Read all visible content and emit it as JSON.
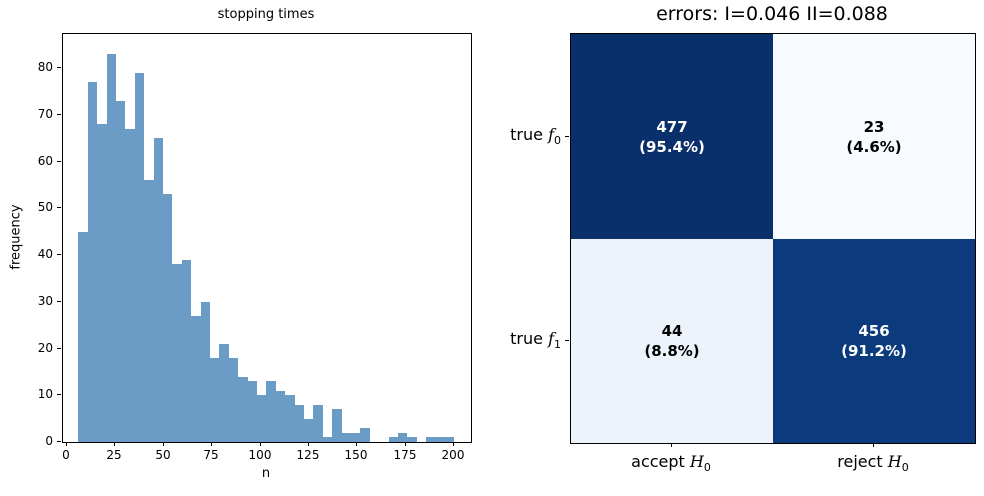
{
  "figure": {
    "background": "#ffffff"
  },
  "histogram": {
    "title": "stopping times",
    "xlabel": "n",
    "ylabel": "frequency",
    "bar_color": "#6a9cc6",
    "xticks": [
      0,
      25,
      50,
      75,
      100,
      125,
      150,
      175,
      200
    ],
    "yticks": [
      0,
      10,
      20,
      30,
      40,
      50,
      60,
      70,
      80
    ],
    "bin_start": 6,
    "bin_width": 4.85,
    "frequencies": [
      45,
      77,
      68,
      83,
      73,
      67,
      79,
      56,
      65,
      53,
      38,
      39,
      27,
      30,
      18,
      21,
      18,
      14,
      13,
      10,
      13,
      11,
      10,
      8,
      5,
      8,
      1,
      7,
      2,
      2,
      3,
      0,
      0,
      1,
      2,
      1,
      0,
      1,
      1,
      1
    ]
  },
  "confusion_matrix": {
    "title": "errors: I=0.046 II=0.088",
    "row_labels": [
      {
        "prefix": "true ",
        "var": "f",
        "sub": "0"
      },
      {
        "prefix": "true ",
        "var": "f",
        "sub": "1"
      }
    ],
    "col_labels": [
      {
        "prefix": "accept ",
        "var": "H",
        "sub": "0"
      },
      {
        "prefix": "reject ",
        "var": "H",
        "sub": "0"
      }
    ],
    "cells": [
      {
        "count": "477",
        "pct": "(95.4%)",
        "bg": "#09306a",
        "fg": "#ffffff"
      },
      {
        "count": "23",
        "pct": "(4.6%)",
        "bg": "#f7fafe",
        "fg": "#000000"
      },
      {
        "count": "44",
        "pct": "(8.8%)",
        "bg": "#ecf3fb",
        "fg": "#000000"
      },
      {
        "count": "456",
        "pct": "(91.2%)",
        "bg": "#0b3b7c",
        "fg": "#ffffff"
      }
    ]
  },
  "chart_data": [
    {
      "type": "bar",
      "title": "stopping times",
      "xlabel": "n",
      "ylabel": "frequency",
      "xlim": [
        -2,
        208.6
      ],
      "ylim": [
        0,
        87.3
      ],
      "grid": false,
      "bin_start": 6,
      "bin_width": 4.85,
      "values": [
        45,
        77,
        68,
        83,
        73,
        67,
        79,
        56,
        65,
        53,
        38,
        39,
        27,
        30,
        18,
        21,
        18,
        14,
        13,
        10,
        13,
        11,
        10,
        8,
        5,
        8,
        1,
        7,
        2,
        2,
        3,
        0,
        0,
        1,
        2,
        1,
        0,
        1,
        1,
        1
      ]
    },
    {
      "type": "heatmap",
      "title": "errors: I=0.046 II=0.088",
      "rows": [
        "true f0",
        "true f1"
      ],
      "columns": [
        "accept H0",
        "reject H0"
      ],
      "values": [
        [
          477,
          23
        ],
        [
          44,
          456
        ]
      ],
      "percentages": [
        [
          95.4,
          4.6
        ],
        [
          8.8,
          91.2
        ]
      ],
      "colormap": "Blues"
    }
  ]
}
